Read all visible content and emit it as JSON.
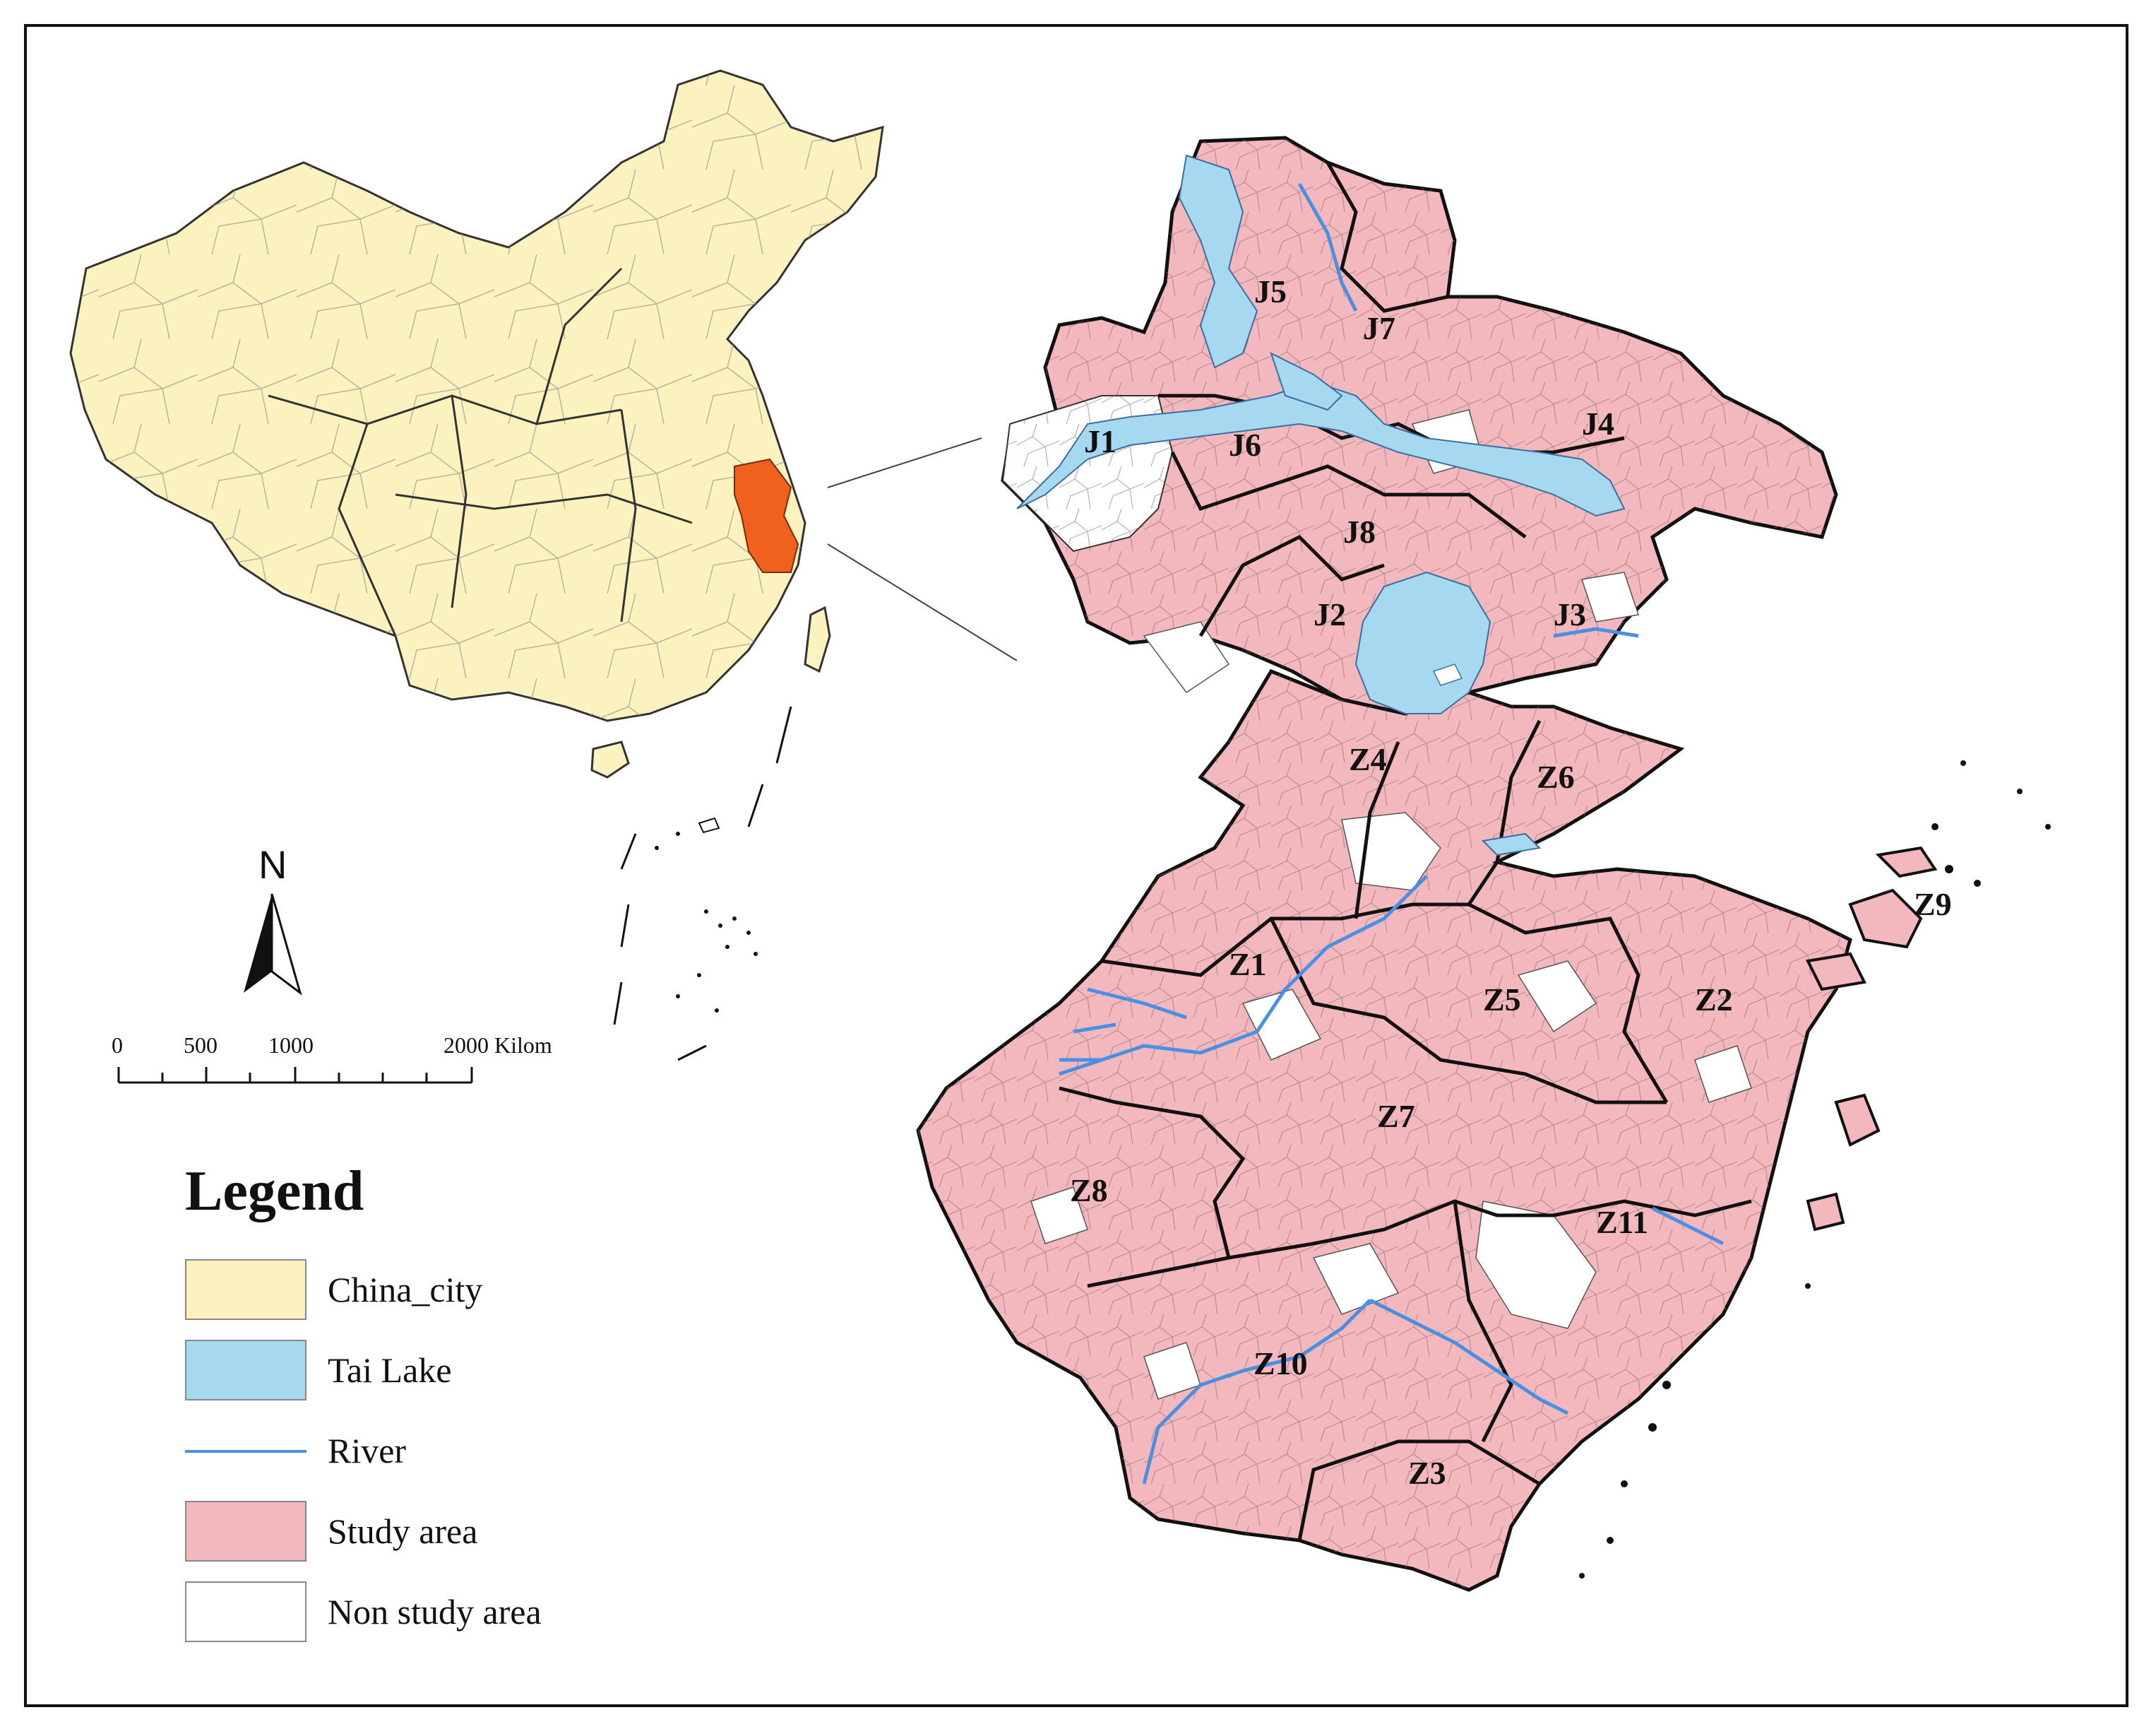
{
  "colors": {
    "china_city": "#fbf2c0",
    "tai_lake": "#a6d8f0",
    "river": "#4a90e2",
    "study_area": "#f3b8bd",
    "non_study_area": "#ffffff",
    "highlight": "#f0611e"
  },
  "north_arrow": {
    "label": "N"
  },
  "scale_bar": {
    "ticks": [
      "0",
      "500",
      "1000",
      "2000 Kilom"
    ]
  },
  "region_labels": {
    "J1": "J1",
    "J2": "J2",
    "J3": "J3",
    "J4": "J4",
    "J5": "J5",
    "J6": "J6",
    "J7": "J7",
    "J8": "J8",
    "Z1": "Z1",
    "Z2": "Z2",
    "Z3": "Z3",
    "Z4": "Z4",
    "Z5": "Z5",
    "Z6": "Z6",
    "Z7": "Z7",
    "Z8": "Z8",
    "Z9": "Z9",
    "Z10": "Z10",
    "Z11": "Z11"
  },
  "legend": {
    "title": "Legend",
    "items": [
      {
        "label": "China_city",
        "color": "#fbf2c0",
        "kind": "fill"
      },
      {
        "label": "Tai Lake",
        "color": "#a6d8f0",
        "kind": "fill"
      },
      {
        "label": "River",
        "color": "#4a90e2",
        "kind": "line"
      },
      {
        "label": "Study area",
        "color": "#f3b8bd",
        "kind": "fill"
      },
      {
        "label": "Non study area",
        "color": "#ffffff",
        "kind": "fill"
      }
    ]
  }
}
